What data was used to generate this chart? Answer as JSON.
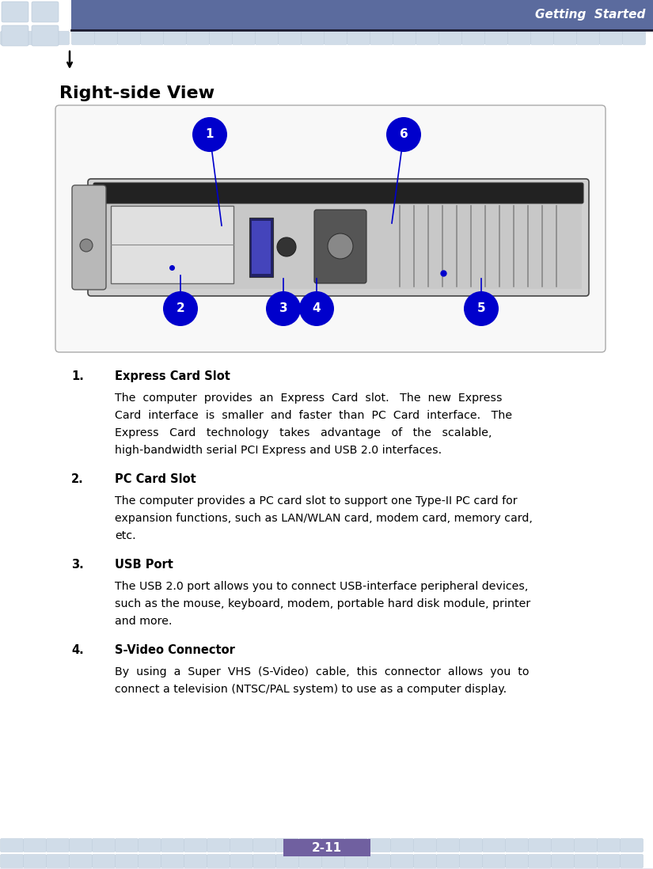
{
  "header_bg_color": "#5b6b9e",
  "header_text": "Getting  Started",
  "header_text_color": "#ffffff",
  "tile_bg": "#d0dce8",
  "tile_border": "#b8c8d8",
  "page_bg": "#ffffff",
  "section_title": "Right-side View",
  "callout_bg": "#0000cc",
  "callout_text_color": "#ffffff",
  "footer_bg": "#7060a0",
  "footer_text": "2-11",
  "footer_text_color": "#ffffff",
  "items": [
    {
      "num": "1.",
      "title": "Express Card Slot",
      "lines": [
        "The  computer  provides  an  Express  Card  slot.   The  new  Express",
        "Card  interface  is  smaller  and  faster  than  PC  Card  interface.   The",
        "Express   Card   technology   takes   advantage   of   the   scalable,",
        "high-bandwidth serial PCI Express and USB 2.0 interfaces."
      ]
    },
    {
      "num": "2.",
      "title": "PC Card Slot",
      "lines": [
        "The computer provides a PC card slot to support one Type-II PC card for",
        "expansion functions, such as LAN/WLAN card, modem card, memory card,",
        "etc."
      ]
    },
    {
      "num": "3.",
      "title": "USB Port",
      "lines": [
        "The USB 2.0 port allows you to connect USB-interface peripheral devices,",
        "such as the mouse, keyboard, modem, portable hard disk module, printer",
        "and more."
      ]
    },
    {
      "num": "4.",
      "title": "S-Video Connector",
      "lines": [
        "By  using  a  Super  VHS  (S-Video)  cable,  this  connector  allows  you  to",
        "connect a television (NTSC/PAL system) to use as a computer display."
      ]
    }
  ]
}
